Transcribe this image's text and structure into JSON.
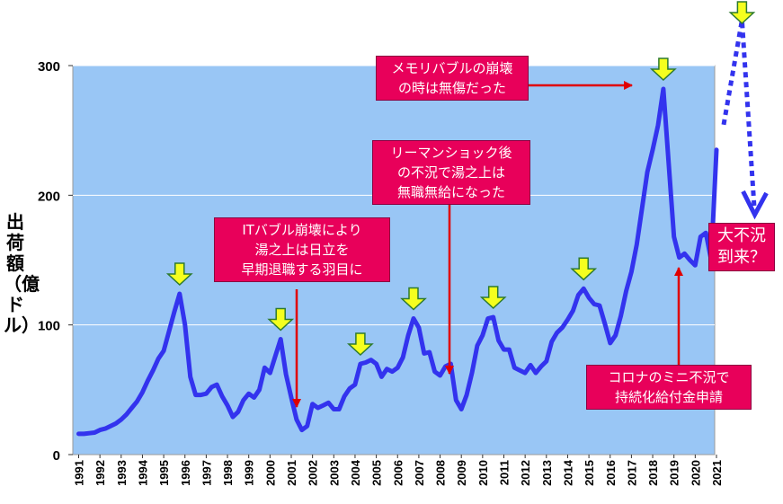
{
  "chart_data": {
    "type": "line",
    "ylabel": "出荷額（億ドル）",
    "ylim": [
      0,
      300
    ],
    "yticks": [
      "0",
      "100",
      "200",
      "300"
    ],
    "year_labels": [
      "1991",
      "1992",
      "1993",
      "1994",
      "1995",
      "1996",
      "1997",
      "1998",
      "1999",
      "2000",
      "2001",
      "2002",
      "2003",
      "2004",
      "2005",
      "2006",
      "2007",
      "2008",
      "2009",
      "2010",
      "2011",
      "2012",
      "2013",
      "2014",
      "2015",
      "2016",
      "2017",
      "2018",
      "2019",
      "2020",
      "2021"
    ],
    "series": [
      {
        "name": "出荷額",
        "x": [
          1991.0,
          1991.25,
          1991.5,
          1991.75,
          1992.0,
          1992.25,
          1992.5,
          1992.75,
          1993.0,
          1993.25,
          1993.5,
          1993.75,
          1994.0,
          1994.25,
          1994.5,
          1994.75,
          1995.0,
          1995.25,
          1995.5,
          1995.75,
          1996.0,
          1996.25,
          1996.5,
          1996.75,
          1997.0,
          1997.25,
          1997.5,
          1997.75,
          1998.0,
          1998.25,
          1998.5,
          1998.75,
          1999.0,
          1999.25,
          1999.5,
          1999.75,
          2000.0,
          2000.25,
          2000.5,
          2000.75,
          2001.0,
          2001.25,
          2001.5,
          2001.75,
          2002.0,
          2002.25,
          2002.5,
          2002.75,
          2003.0,
          2003.25,
          2003.5,
          2003.75,
          2004.0,
          2004.25,
          2004.5,
          2004.75,
          2005.0,
          2005.25,
          2005.5,
          2005.75,
          2006.0,
          2006.25,
          2006.5,
          2006.75,
          2007.0,
          2007.25,
          2007.5,
          2007.75,
          2008.0,
          2008.25,
          2008.5,
          2008.75,
          2009.0,
          2009.25,
          2009.5,
          2009.75,
          2010.0,
          2010.25,
          2010.5,
          2010.75,
          2011.0,
          2011.25,
          2011.5,
          2011.75,
          2012.0,
          2012.25,
          2012.5,
          2012.75,
          2013.0,
          2013.25,
          2013.5,
          2013.75,
          2014.0,
          2014.25,
          2014.5,
          2014.75,
          2015.0,
          2015.25,
          2015.5,
          2015.75,
          2016.0,
          2016.25,
          2016.5,
          2016.75,
          2017.0,
          2017.25,
          2017.5,
          2017.75,
          2018.0,
          2018.25,
          2018.5,
          2018.75,
          2019.0,
          2019.25,
          2019.5,
          2019.75,
          2020.0,
          2020.25,
          2020.5,
          2020.75,
          2021.0
        ],
        "values": [
          16,
          16,
          16.5,
          17,
          19,
          20,
          22,
          24,
          27,
          31,
          36,
          41,
          48,
          57,
          65,
          74,
          80,
          95,
          110,
          124,
          100,
          60,
          46,
          46,
          47,
          52,
          54,
          45,
          38,
          29,
          33,
          42,
          47,
          44,
          50,
          67,
          63,
          76,
          89,
          62,
          44,
          27,
          19,
          22,
          39,
          36,
          38,
          40,
          35,
          35,
          45,
          51,
          54,
          70,
          71,
          73,
          70,
          60,
          66,
          64,
          67,
          75,
          92,
          105,
          98,
          78,
          79,
          64,
          61,
          68,
          70,
          42,
          35,
          46,
          63,
          84,
          92,
          105,
          106,
          88,
          81,
          81,
          67,
          65,
          63,
          69,
          63,
          68,
          72,
          87,
          94,
          98,
          104,
          111,
          123,
          128,
          121,
          116,
          115,
          101,
          86,
          92,
          107,
          126,
          141,
          162,
          190,
          218,
          235,
          254,
          282,
          225,
          168,
          152,
          155,
          150,
          146,
          168,
          171,
          150,
          235
        ]
      }
    ],
    "forecast": {
      "from": [
        2021,
        235
      ],
      "to": [
        2022.2,
        335
      ],
      "end": [
        2022.8,
        185
      ]
    },
    "peak_markers": [
      1995.75,
      2000.5,
      2004.25,
      2006.75,
      2010.5,
      2014.75,
      2018.5,
      2022.2
    ],
    "annotations": [
      {
        "name": "annotation-memory-bubble",
        "lines": [
          "メモリバブルの崩壊",
          "の時は無傷だった"
        ]
      },
      {
        "name": "annotation-lehman",
        "lines": [
          "リーマンショック後",
          "の不況で湯之上は",
          "無職無給になった"
        ]
      },
      {
        "name": "annotation-it-bubble",
        "lines": [
          "ITバブル崩壊により",
          "湯之上は日立を",
          "早期退職する羽目に"
        ]
      },
      {
        "name": "annotation-recession",
        "lines": [
          "大不況",
          "到来？"
        ]
      },
      {
        "name": "annotation-corona",
        "lines": [
          "コロナのミニ不況で",
          "持続化給付金申請"
        ]
      }
    ]
  }
}
